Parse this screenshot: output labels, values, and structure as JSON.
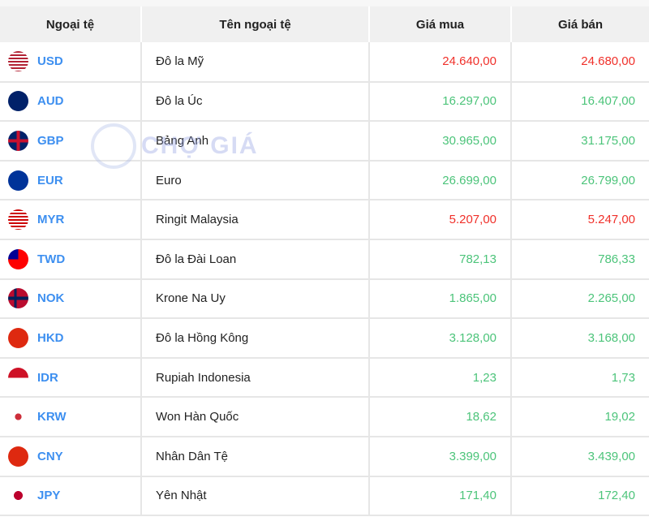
{
  "header": {
    "code": "Ngoại tệ",
    "name": "Tên ngoại tệ",
    "buy": "Giá mua",
    "sell": "Giá bán"
  },
  "watermark": "CHỢ GIÁ",
  "colors": {
    "up": "#f0302a",
    "unchanged": "#4cc47a",
    "code": "#3d8ff0"
  },
  "rows": [
    {
      "code": "USD",
      "name": "Đô la Mỹ",
      "buy": "24.640,00",
      "sell": "24.680,00",
      "trend": "up",
      "flag": "us-flag-icon",
      "fc": [
        "#b22234",
        "#fff",
        "#3c3b6e"
      ]
    },
    {
      "code": "AUD",
      "name": "Đô la Úc",
      "buy": "16.297,00",
      "sell": "16.407,00",
      "trend": "eq",
      "flag": "au-flag-icon",
      "fc": [
        "#012169",
        "#c8102e",
        "#fff"
      ]
    },
    {
      "code": "GBP",
      "name": "Bảng Anh",
      "buy": "30.965,00",
      "sell": "31.175,00",
      "trend": "eq",
      "flag": "gb-flag-icon",
      "fc": [
        "#012169",
        "#c8102e",
        "#fff"
      ]
    },
    {
      "code": "EUR",
      "name": "Euro",
      "buy": "26.699,00",
      "sell": "26.799,00",
      "trend": "eq",
      "flag": "eu-flag-icon",
      "fc": [
        "#003399",
        "#ffcc00",
        "#003399"
      ]
    },
    {
      "code": "MYR",
      "name": "Ringit Malaysia",
      "buy": "5.207,00",
      "sell": "5.247,00",
      "trend": "up",
      "flag": "my-flag-icon",
      "fc": [
        "#cc0001",
        "#fff",
        "#010066"
      ]
    },
    {
      "code": "TWD",
      "name": "Đô la Đài Loan",
      "buy": "782,13",
      "sell": "786,33",
      "trend": "eq",
      "flag": "tw-flag-icon",
      "fc": [
        "#fe0000",
        "#fe0000",
        "#000095"
      ]
    },
    {
      "code": "NOK",
      "name": "Krone Na Uy",
      "buy": "1.865,00",
      "sell": "2.265,00",
      "trend": "eq",
      "flag": "no-flag-icon",
      "fc": [
        "#ba0c2f",
        "#fff",
        "#00205b"
      ]
    },
    {
      "code": "HKD",
      "name": "Đô la Hồng Kông",
      "buy": "3.128,00",
      "sell": "3.168,00",
      "trend": "eq",
      "flag": "hk-flag-icon",
      "fc": [
        "#de2910",
        "#de2910",
        "#de2910"
      ]
    },
    {
      "code": "IDR",
      "name": "Rupiah Indonesia",
      "buy": "1,23",
      "sell": "1,73",
      "trend": "eq",
      "flag": "id-flag-icon",
      "fc": [
        "#ce1126",
        "#fff",
        "#fff"
      ]
    },
    {
      "code": "KRW",
      "name": "Won Hàn Quốc",
      "buy": "18,62",
      "sell": "19,02",
      "trend": "eq",
      "flag": "kr-flag-icon",
      "fc": [
        "#fff",
        "#cd2e3a",
        "#fff"
      ]
    },
    {
      "code": "CNY",
      "name": "Nhân Dân Tệ",
      "buy": "3.399,00",
      "sell": "3.439,00",
      "trend": "eq",
      "flag": "cn-flag-icon",
      "fc": [
        "#de2910",
        "#de2910",
        "#de2910"
      ]
    },
    {
      "code": "JPY",
      "name": "Yên Nhật",
      "buy": "171,40",
      "sell": "172,40",
      "trend": "eq",
      "flag": "jp-flag-icon",
      "fc": [
        "#fff",
        "#fff",
        "#fff"
      ]
    }
  ]
}
